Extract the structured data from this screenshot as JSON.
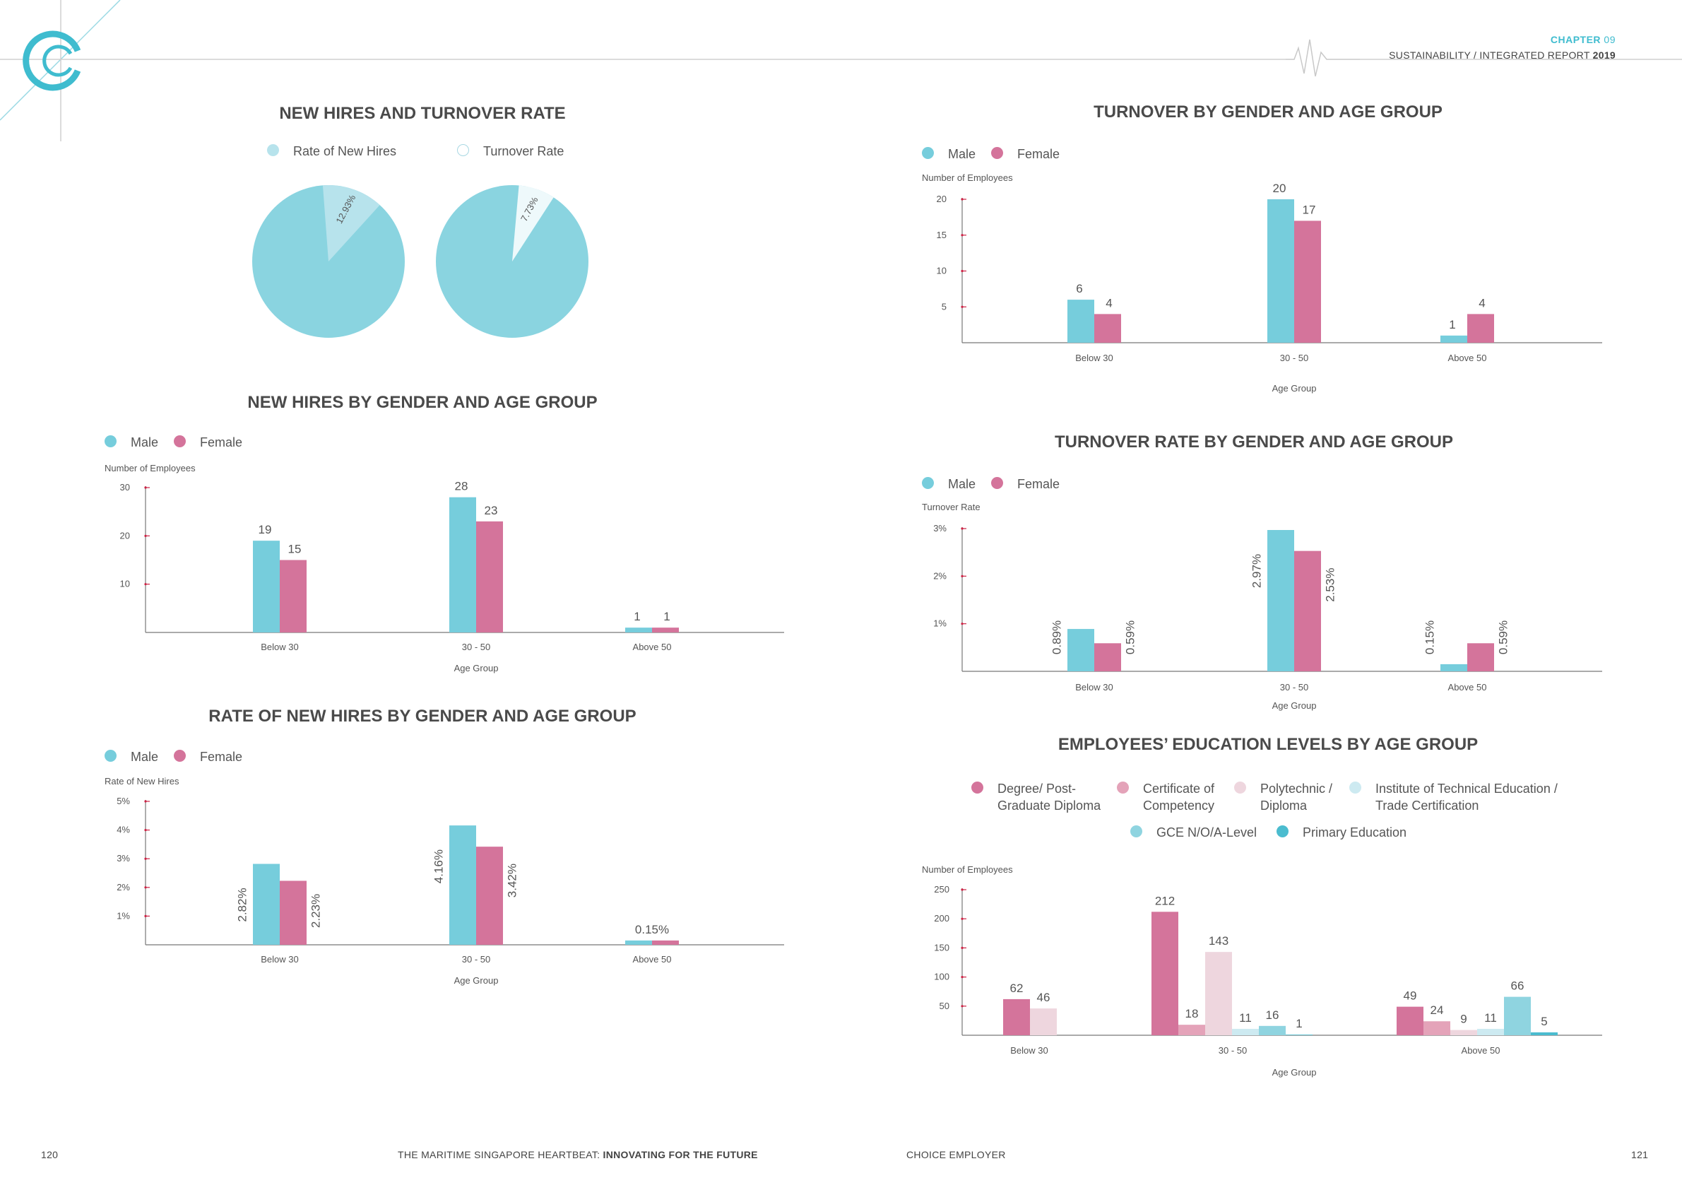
{
  "colors": {
    "male": "#76cddc",
    "female": "#d4749b",
    "accent": "#3fbccf",
    "axis": "#777777",
    "tick": "#cc2244",
    "degree": "#d4749b",
    "certificate": "#e4a3b9",
    "polytechnic": "#eed6de",
    "ite": "#cdeaf1",
    "gce": "#8fd4e0",
    "primary": "#4bbccf"
  },
  "header": {
    "chapter_label": "CHAPTER",
    "chapter_number": "09",
    "report_title": "SUSTAINABILITY / INTEGRATED REPORT",
    "report_year": "2019"
  },
  "footer": {
    "page_left": "120",
    "page_right": "121",
    "left_text": "THE MARITIME SINGAPORE HEARTBEAT: ",
    "left_text_bold": "INNOVATING FOR THE FUTURE",
    "right_text": "CHOICE EMPLOYER"
  },
  "legend": {
    "male": "Male",
    "female": "Female"
  },
  "chart_data": [
    {
      "id": "new-hires-turnover",
      "type": "pie",
      "title": "NEW HIRES AND TURNOVER RATE",
      "legend": [
        "Rate of New Hires",
        "Turnover Rate"
      ],
      "pies": [
        {
          "name": "Rate of New Hires",
          "value": 12.93,
          "label": "12.93%"
        },
        {
          "name": "Turnover Rate",
          "value": 7.73,
          "label": "7.73%"
        }
      ]
    },
    {
      "id": "new-hires-gender-age",
      "type": "bar",
      "title": "NEW HIRES BY GENDER AND AGE GROUP",
      "ylabel": "Number of Employees",
      "xlabel": "Age Group",
      "ylim": [
        0,
        30
      ],
      "yticks": [
        "10",
        "20",
        "30"
      ],
      "categories": [
        "Below 30",
        "30 - 50",
        "Above 50"
      ],
      "series": [
        {
          "name": "Male",
          "values": [
            19,
            28,
            1
          ],
          "labels": [
            "19",
            "28",
            "1"
          ]
        },
        {
          "name": "Female",
          "values": [
            15,
            23,
            1
          ],
          "labels": [
            "15",
            "23",
            "1"
          ]
        }
      ]
    },
    {
      "id": "rate-new-hires-gender-age",
      "type": "bar",
      "title": "RATE OF NEW HIRES BY GENDER AND AGE GROUP",
      "ylabel": "Rate of New Hires",
      "xlabel": "Age Group",
      "ylim": [
        0,
        5
      ],
      "yticks": [
        "1%",
        "2%",
        "3%",
        "4%",
        "5%"
      ],
      "categories": [
        "Below 30",
        "30 - 50",
        "Above 50"
      ],
      "series": [
        {
          "name": "Male",
          "values": [
            2.82,
            4.16,
            0.15
          ],
          "labels": [
            "2.82%",
            "4.16%",
            ""
          ]
        },
        {
          "name": "Female",
          "values": [
            2.23,
            3.42,
            0.15
          ],
          "labels": [
            "2.23%",
            "3.42%",
            ""
          ]
        }
      ],
      "shared_label": {
        "category": "Above 50",
        "text": "0.15%"
      }
    },
    {
      "id": "turnover-gender-age",
      "type": "bar",
      "title": "TURNOVER BY GENDER AND AGE GROUP",
      "ylabel": "Number of Employees",
      "xlabel": "Age Group",
      "ylim": [
        0,
        20
      ],
      "yticks": [
        "5",
        "10",
        "15",
        "20"
      ],
      "categories": [
        "Below 30",
        "30 - 50",
        "Above 50"
      ],
      "series": [
        {
          "name": "Male",
          "values": [
            6,
            20,
            1
          ],
          "labels": [
            "6",
            "20",
            "1"
          ]
        },
        {
          "name": "Female",
          "values": [
            4,
            17,
            4
          ],
          "labels": [
            "4",
            "17",
            "4"
          ]
        }
      ]
    },
    {
      "id": "turnover-rate-gender-age",
      "type": "bar",
      "title": "TURNOVER RATE BY GENDER AND AGE GROUP",
      "ylabel": "Turnover Rate",
      "xlabel": "Age Group",
      "ylim": [
        0,
        3
      ],
      "yticks": [
        "1%",
        "2%",
        "3%"
      ],
      "categories": [
        "Below 30",
        "30 - 50",
        "Above 50"
      ],
      "series": [
        {
          "name": "Male",
          "values": [
            0.89,
            2.97,
            0.15
          ],
          "labels": [
            "0.89%",
            "2.97%",
            "0.15%"
          ]
        },
        {
          "name": "Female",
          "values": [
            0.59,
            2.53,
            0.59
          ],
          "labels": [
            "0.59%",
            "2.53%",
            "0.59%"
          ]
        }
      ]
    },
    {
      "id": "education-levels",
      "type": "bar",
      "title": "EMPLOYEES’ EDUCATION LEVELS BY AGE GROUP",
      "ylabel": "Number of Employees",
      "xlabel": "Age Group",
      "ylim": [
        0,
        250
      ],
      "yticks": [
        "50",
        "100",
        "150",
        "200",
        "250"
      ],
      "categories": [
        "Below 30",
        "30 - 50",
        "Above 50"
      ],
      "series": [
        {
          "name": "Degree/ Post-Graduate Diploma",
          "line1": "Degree/ Post-",
          "line2": "Graduate Diploma",
          "values": [
            62,
            212,
            49
          ]
        },
        {
          "name": "Certificate of Competency",
          "line1": "Certificate of",
          "line2": "Competency",
          "values": [
            null,
            18,
            24
          ]
        },
        {
          "name": "Polytechnic / Diploma",
          "line1": "Polytechnic /",
          "line2": "Diploma",
          "values": [
            46,
            143,
            9
          ]
        },
        {
          "name": "Institute of Technical Education / Trade Certification",
          "line1": "Institute of Technical Education /",
          "line2": "Trade Certification",
          "values": [
            null,
            11,
            11
          ]
        },
        {
          "name": "GCE N/O/A-Level",
          "line1": "GCE N/O/A-Level",
          "line2": "",
          "values": [
            null,
            16,
            66
          ]
        },
        {
          "name": "Primary Education",
          "line1": "Primary Education",
          "line2": "",
          "values": [
            null,
            1,
            5
          ]
        }
      ]
    }
  ]
}
